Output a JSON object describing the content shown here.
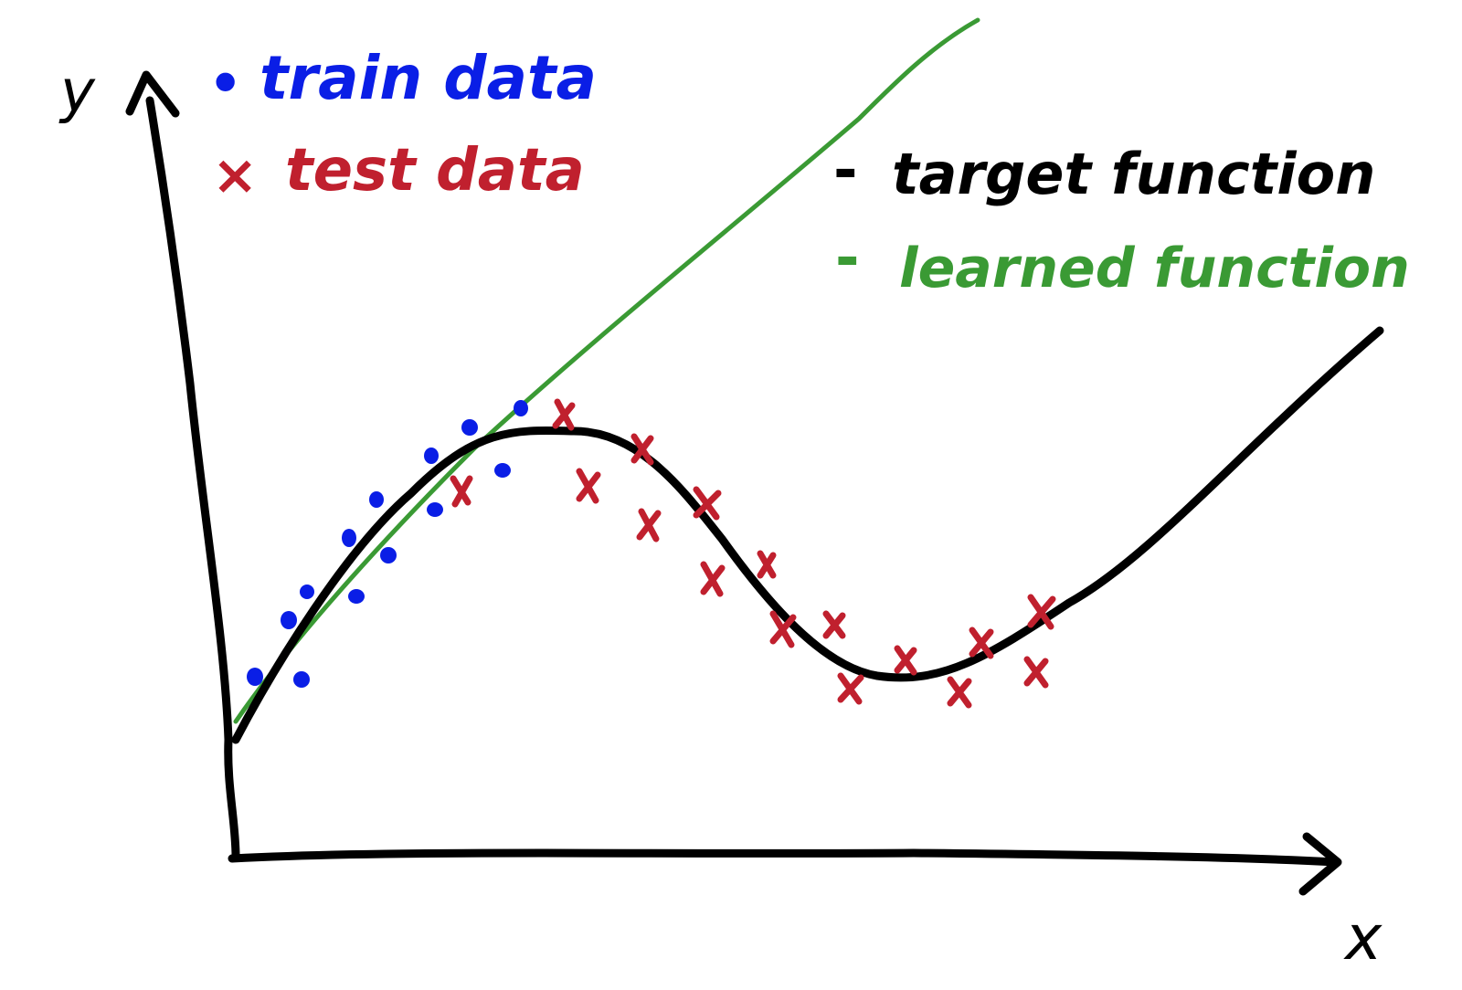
{
  "axes": {
    "x_label": "x",
    "y_label": "y"
  },
  "legend": {
    "train": {
      "marker": "•",
      "label": "train data"
    },
    "test": {
      "marker": "×",
      "label": "test data"
    },
    "target": {
      "marker": "-",
      "label": "target function"
    },
    "learned": {
      "marker": "-",
      "label": "learned function"
    }
  },
  "colors": {
    "axes": "#000000",
    "train": "#0a1ee6",
    "test": "#c0202e",
    "target": "#000000",
    "learned": "#3a9a34"
  }
}
